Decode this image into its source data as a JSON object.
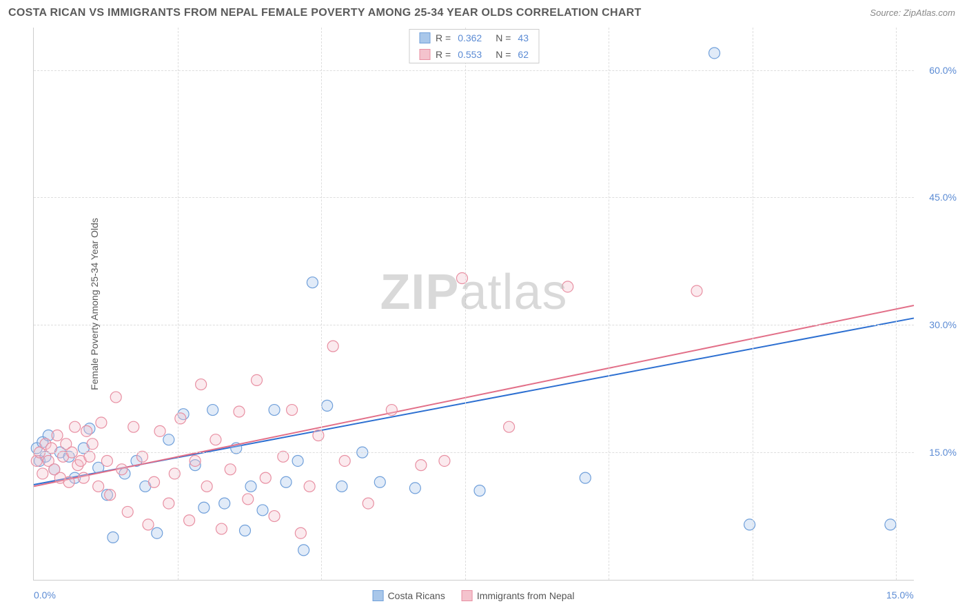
{
  "header": {
    "title": "COSTA RICAN VS IMMIGRANTS FROM NEPAL FEMALE POVERTY AMONG 25-34 YEAR OLDS CORRELATION CHART",
    "source_label": "Source:",
    "source_value": "ZipAtlas.com"
  },
  "chart": {
    "type": "scatter",
    "y_axis_label": "Female Poverty Among 25-34 Year Olds",
    "xlim": [
      0,
      15
    ],
    "ylim": [
      0,
      65
    ],
    "x_ticks": [
      {
        "value": 0,
        "label": "0.0%"
      },
      {
        "value": 15,
        "label": "15.0%"
      }
    ],
    "y_ticks": [
      {
        "value": 15,
        "label": "15.0%"
      },
      {
        "value": 30,
        "label": "30.0%"
      },
      {
        "value": 45,
        "label": "45.0%"
      },
      {
        "value": 60,
        "label": "60.0%"
      }
    ],
    "x_gridlines": [
      2.45,
      4.9,
      7.35,
      9.8,
      12.25,
      14.7
    ],
    "background_color": "#ffffff",
    "grid_color": "#dddddd",
    "axis_color": "#cccccc",
    "tick_label_color": "#5b8bd4",
    "tick_fontsize": 14,
    "marker_radius": 8,
    "marker_fill_opacity": 0.35,
    "marker_stroke_width": 1.2,
    "line_width": 2,
    "series": [
      {
        "name": "Costa Ricans",
        "color_fill": "#a9c7ea",
        "color_stroke": "#6f9fda",
        "line_color": "#2c6fd1",
        "R": "0.362",
        "N": "43",
        "trend_line": {
          "x1": 0,
          "y1": 11.2,
          "x2": 15,
          "y2": 30.8
        },
        "points": [
          [
            0.05,
            15.5
          ],
          [
            0.1,
            14.0
          ],
          [
            0.15,
            16.2
          ],
          [
            0.2,
            14.5
          ],
          [
            0.25,
            17.0
          ],
          [
            0.35,
            13.0
          ],
          [
            0.45,
            15.0
          ],
          [
            0.6,
            14.5
          ],
          [
            0.7,
            12.0
          ],
          [
            0.85,
            15.5
          ],
          [
            0.95,
            17.8
          ],
          [
            1.1,
            13.2
          ],
          [
            1.25,
            10.0
          ],
          [
            1.35,
            5.0
          ],
          [
            1.55,
            12.5
          ],
          [
            1.75,
            14.0
          ],
          [
            1.9,
            11.0
          ],
          [
            2.1,
            5.5
          ],
          [
            2.3,
            16.5
          ],
          [
            2.55,
            19.5
          ],
          [
            2.75,
            13.5
          ],
          [
            2.9,
            8.5
          ],
          [
            3.05,
            20.0
          ],
          [
            3.25,
            9.0
          ],
          [
            3.45,
            15.5
          ],
          [
            3.6,
            5.8
          ],
          [
            3.7,
            11.0
          ],
          [
            3.9,
            8.2
          ],
          [
            4.1,
            20.0
          ],
          [
            4.3,
            11.5
          ],
          [
            4.5,
            14.0
          ],
          [
            4.6,
            3.5
          ],
          [
            4.75,
            35.0
          ],
          [
            5.0,
            20.5
          ],
          [
            5.25,
            11.0
          ],
          [
            5.6,
            15.0
          ],
          [
            5.9,
            11.5
          ],
          [
            6.5,
            10.8
          ],
          [
            7.6,
            10.5
          ],
          [
            9.4,
            12.0
          ],
          [
            11.6,
            62.0
          ],
          [
            12.2,
            6.5
          ],
          [
            14.6,
            6.5
          ]
        ]
      },
      {
        "name": "Immigrants from Nepal",
        "color_fill": "#f4c3cd",
        "color_stroke": "#e88fa2",
        "line_color": "#e26f88",
        "R": "0.553",
        "N": "62",
        "trend_line": {
          "x1": 0,
          "y1": 11.0,
          "x2": 15,
          "y2": 32.3
        },
        "points": [
          [
            0.05,
            14.0
          ],
          [
            0.1,
            15.0
          ],
          [
            0.15,
            12.5
          ],
          [
            0.2,
            16.0
          ],
          [
            0.25,
            14.0
          ],
          [
            0.3,
            15.5
          ],
          [
            0.35,
            13.0
          ],
          [
            0.4,
            17.0
          ],
          [
            0.45,
            12.0
          ],
          [
            0.5,
            14.5
          ],
          [
            0.55,
            16.0
          ],
          [
            0.6,
            11.5
          ],
          [
            0.65,
            15.0
          ],
          [
            0.7,
            18.0
          ],
          [
            0.75,
            13.5
          ],
          [
            0.8,
            14.0
          ],
          [
            0.85,
            12.0
          ],
          [
            0.9,
            17.5
          ],
          [
            0.95,
            14.5
          ],
          [
            1.0,
            16.0
          ],
          [
            1.1,
            11.0
          ],
          [
            1.15,
            18.5
          ],
          [
            1.25,
            14.0
          ],
          [
            1.3,
            10.0
          ],
          [
            1.4,
            21.5
          ],
          [
            1.5,
            13.0
          ],
          [
            1.6,
            8.0
          ],
          [
            1.7,
            18.0
          ],
          [
            1.85,
            14.5
          ],
          [
            1.95,
            6.5
          ],
          [
            2.05,
            11.5
          ],
          [
            2.15,
            17.5
          ],
          [
            2.3,
            9.0
          ],
          [
            2.4,
            12.5
          ],
          [
            2.5,
            19.0
          ],
          [
            2.65,
            7.0
          ],
          [
            2.75,
            14.0
          ],
          [
            2.85,
            23.0
          ],
          [
            2.95,
            11.0
          ],
          [
            3.1,
            16.5
          ],
          [
            3.2,
            6.0
          ],
          [
            3.35,
            13.0
          ],
          [
            3.5,
            19.8
          ],
          [
            3.65,
            9.5
          ],
          [
            3.8,
            23.5
          ],
          [
            3.95,
            12.0
          ],
          [
            4.1,
            7.5
          ],
          [
            4.25,
            14.5
          ],
          [
            4.4,
            20.0
          ],
          [
            4.55,
            5.5
          ],
          [
            4.7,
            11.0
          ],
          [
            4.85,
            17.0
          ],
          [
            5.1,
            27.5
          ],
          [
            5.3,
            14.0
          ],
          [
            5.7,
            9.0
          ],
          [
            6.1,
            20.0
          ],
          [
            6.6,
            13.5
          ],
          [
            7.0,
            14.0
          ],
          [
            7.3,
            35.5
          ],
          [
            8.1,
            18.0
          ],
          [
            9.1,
            34.5
          ],
          [
            11.3,
            34.0
          ]
        ]
      }
    ],
    "legend_top_labels": {
      "R": "R =",
      "N": "N ="
    },
    "legend_bottom": [
      {
        "label": "Costa Ricans",
        "fill": "#a9c7ea",
        "stroke": "#6f9fda"
      },
      {
        "label": "Immigrants from Nepal",
        "fill": "#f4c3cd",
        "stroke": "#e88fa2"
      }
    ]
  },
  "watermark": {
    "part1": "ZIP",
    "part2": "atlas"
  }
}
